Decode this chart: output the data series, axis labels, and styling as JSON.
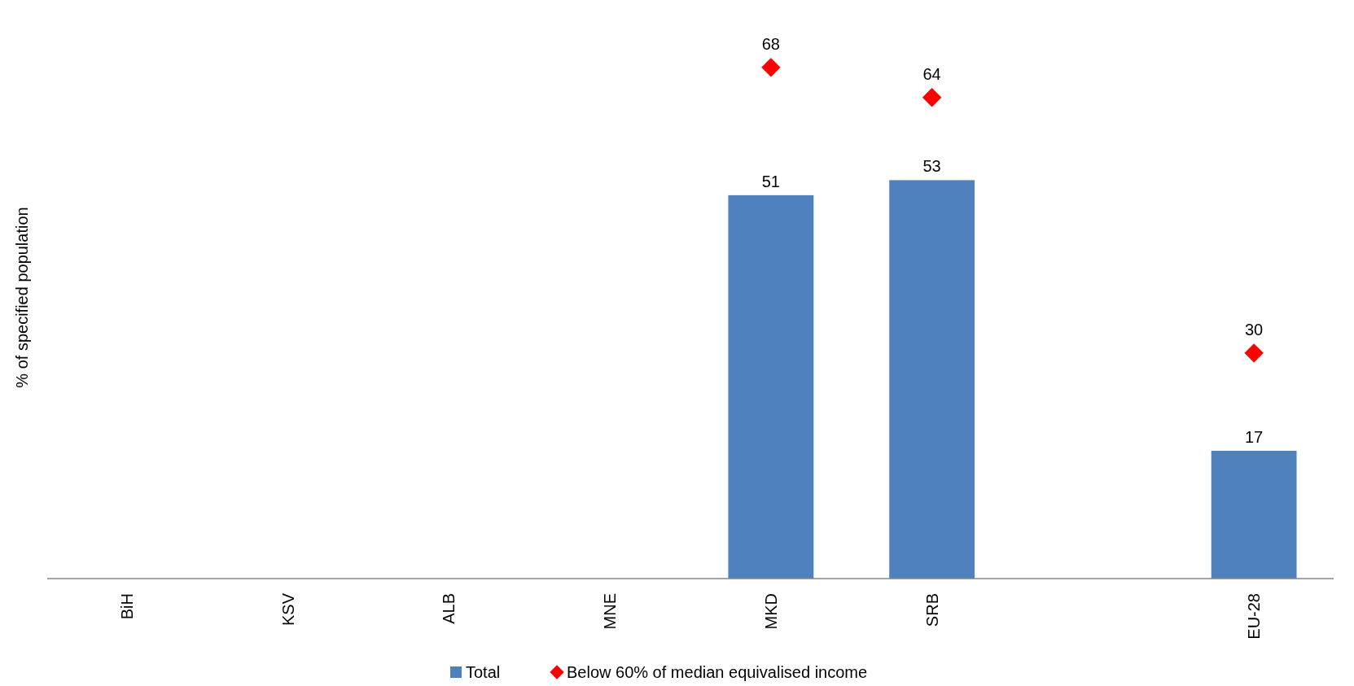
{
  "chart_data": {
    "type": "bar",
    "ylabel": "% of specified population",
    "categories": [
      "BiH",
      "KSV",
      "ALB",
      "MNE",
      "MKD",
      "SRB",
      null,
      "EU-28"
    ],
    "series": [
      {
        "name": "Total",
        "type": "bar",
        "color": "#4f81bd",
        "values": [
          null,
          null,
          null,
          null,
          51,
          53,
          null,
          17
        ]
      },
      {
        "name": "Below 60% of median equivalised income",
        "type": "scatter",
        "color": "#ff0000",
        "marker": "diamond",
        "values": [
          null,
          null,
          null,
          null,
          68,
          64,
          null,
          30
        ]
      }
    ],
    "tick_labels": "x",
    "data_labels": true,
    "legend": "bottom"
  }
}
